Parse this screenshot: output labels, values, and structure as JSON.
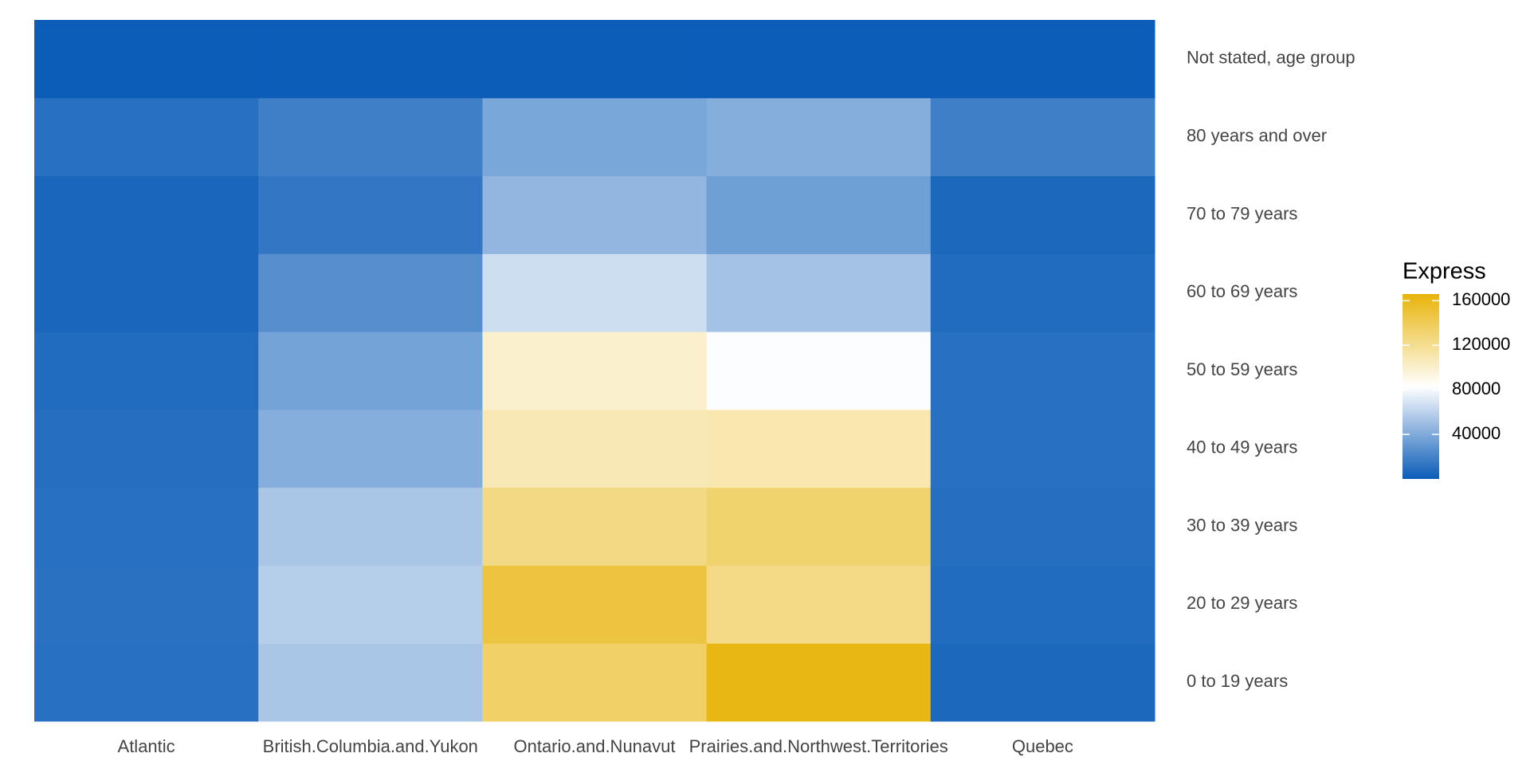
{
  "chart_data": {
    "type": "heatmap",
    "x_categories": [
      "Atlantic",
      "British.Columbia.and.Yukon",
      "Ontario.and.Nunavut",
      "Prairies.and.Northwest.Territories",
      "Quebec"
    ],
    "y_categories": [
      "0 to 19 years",
      "20 to 29 years",
      "30 to 39 years",
      "40 to 49 years",
      "50 to 59 years",
      "60 to 69 years",
      "70 to 79 years",
      "80 years and over",
      "Not stated, age group"
    ],
    "values": [
      [
        10000,
        54000,
        135000,
        163000,
        6000
      ],
      [
        11000,
        58000,
        148000,
        124000,
        8000
      ],
      [
        10000,
        54000,
        125000,
        132000,
        9000
      ],
      [
        9000,
        42000,
        108000,
        110000,
        10000
      ],
      [
        8000,
        36000,
        100000,
        82000,
        10000
      ],
      [
        5000,
        26000,
        66000,
        52000,
        8000
      ],
      [
        5000,
        14000,
        46000,
        34000,
        6000
      ],
      [
        10000,
        18000,
        38000,
        42000,
        18000
      ],
      [
        500,
        500,
        500,
        500,
        500
      ]
    ],
    "legend_title": "Express",
    "zlim": [
      0,
      166000
    ],
    "zticks": [
      40000,
      80000,
      120000,
      160000
    ],
    "colors": [
      "#0a5cb8",
      "#ffffff",
      "#e8b40a"
    ]
  }
}
